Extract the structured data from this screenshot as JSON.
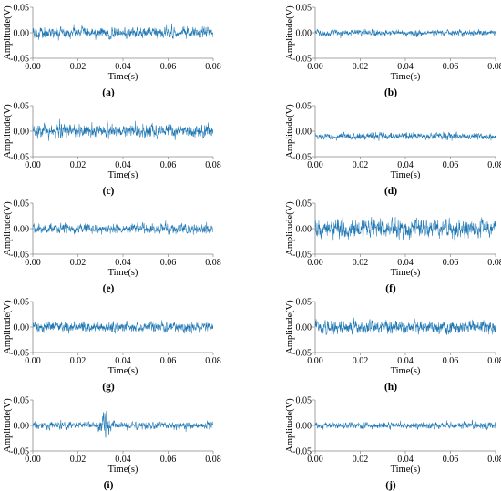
{
  "figure": {
    "axis_color": "#888888",
    "signal_color": "#1f77b4"
  },
  "chart_data": [
    {
      "type": "line",
      "panel": "a",
      "caption": "(a)",
      "xlabel": "Time(s)",
      "ylabel": "Amplitude(V)",
      "xlim": [
        0,
        0.08
      ],
      "ylim": [
        -0.05,
        0.05
      ],
      "xticks": [
        "0.00",
        "0.02",
        "0.04",
        "0.06",
        "0.08"
      ],
      "yticks": [
        "0.05",
        "0.00",
        "-0.05"
      ],
      "series": [
        {
          "color": "#1f77b4",
          "noise_amplitude": 0.018,
          "offset": 0.0,
          "points": 900,
          "sample_interval": 8.89e-05
        }
      ]
    },
    {
      "type": "line",
      "panel": "b",
      "caption": "(b)",
      "xlabel": "Time(s)",
      "ylabel": "Amplitude(V)",
      "xlim": [
        0,
        0.08
      ],
      "ylim": [
        -0.05,
        0.05
      ],
      "xticks": [
        "0.00",
        "0.02",
        "0.04",
        "0.06",
        "0.08"
      ],
      "yticks": [
        "0.05",
        "0.00",
        "-0.05"
      ],
      "series": [
        {
          "color": "#1f77b4",
          "noise_amplitude": 0.01,
          "offset": 0.0,
          "points": 900,
          "sample_interval": 8.89e-05
        }
      ]
    },
    {
      "type": "line",
      "panel": "c",
      "caption": "(c)",
      "xlabel": "Time(s)",
      "ylabel": "Amplitude(V)",
      "xlim": [
        0,
        0.08
      ],
      "ylim": [
        -0.05,
        0.05
      ],
      "xticks": [
        "0.00",
        "0.02",
        "0.04",
        "0.06",
        "0.08"
      ],
      "yticks": [
        "0.05",
        "0.00",
        "-0.05"
      ],
      "series": [
        {
          "color": "#1f77b4",
          "noise_amplitude": 0.022,
          "offset": 0.0,
          "points": 900,
          "sample_interval": 8.89e-05
        }
      ]
    },
    {
      "type": "line",
      "panel": "d",
      "caption": "(d)",
      "xlabel": "Time(s)",
      "ylabel": "Amplitude(V)",
      "xlim": [
        0,
        0.08
      ],
      "ylim": [
        -0.05,
        0.05
      ],
      "xticks": [
        "0.00",
        "0.02",
        "0.04",
        "0.06",
        "0.08"
      ],
      "yticks": [
        "0.05",
        "0.00",
        "-0.05"
      ],
      "series": [
        {
          "color": "#1f77b4",
          "noise_amplitude": 0.011,
          "offset": -0.01,
          "points": 900,
          "sample_interval": 8.89e-05
        }
      ]
    },
    {
      "type": "line",
      "panel": "e",
      "caption": "(e)",
      "xlabel": "Time(s)",
      "ylabel": "Amplitude(V)",
      "xlim": [
        0,
        0.08
      ],
      "ylim": [
        -0.05,
        0.05
      ],
      "xticks": [
        "0.00",
        "0.02",
        "0.04",
        "0.06",
        "0.08"
      ],
      "yticks": [
        "0.05",
        "0.00",
        "-0.05"
      ],
      "series": [
        {
          "color": "#1f77b4",
          "noise_amplitude": 0.016,
          "offset": 0.0,
          "points": 900,
          "sample_interval": 8.89e-05
        }
      ]
    },
    {
      "type": "line",
      "panel": "f",
      "caption": "(f)",
      "xlabel": "Time(s)",
      "ylabel": "Amplitude(V)",
      "xlim": [
        0,
        0.08
      ],
      "ylim": [
        -0.05,
        0.05
      ],
      "xticks": [
        "0.00",
        "0.02",
        "0.04",
        "0.06",
        "0.08"
      ],
      "yticks": [
        "0.05",
        "0.00",
        "-0.05"
      ],
      "series": [
        {
          "color": "#1f77b4",
          "noise_amplitude": 0.03,
          "offset": 0.0,
          "points": 900,
          "sample_interval": 8.89e-05
        }
      ]
    },
    {
      "type": "line",
      "panel": "g",
      "caption": "(g)",
      "xlabel": "Time(s)",
      "ylabel": "Amplitude(V)",
      "xlim": [
        0,
        0.08
      ],
      "ylim": [
        -0.05,
        0.05
      ],
      "xticks": [
        "0.00",
        "0.02",
        "0.04",
        "0.06",
        "0.08"
      ],
      "yticks": [
        "0.05",
        "0.00",
        "-0.05"
      ],
      "series": [
        {
          "color": "#1f77b4",
          "noise_amplitude": 0.016,
          "offset": 0.0,
          "points": 900,
          "sample_interval": 8.89e-05
        }
      ]
    },
    {
      "type": "line",
      "panel": "h",
      "caption": "(h)",
      "xlabel": "Time(s)",
      "ylabel": "Amplitude(V)",
      "xlim": [
        0,
        0.08
      ],
      "ylim": [
        -0.05,
        0.05
      ],
      "xticks": [
        "0.00",
        "0.02",
        "0.04",
        "0.06",
        "0.08"
      ],
      "yticks": [
        "0.05",
        "0.00",
        "-0.05"
      ],
      "series": [
        {
          "color": "#1f77b4",
          "noise_amplitude": 0.02,
          "offset": 0.0,
          "points": 900,
          "sample_interval": 8.89e-05
        }
      ]
    },
    {
      "type": "line",
      "panel": "i",
      "caption": "(i)",
      "xlabel": "Time(s)",
      "ylabel": "Amplitude(V)",
      "xlim": [
        0,
        0.08
      ],
      "ylim": [
        -0.05,
        0.05
      ],
      "xticks": [
        "0.00",
        "0.02",
        "0.04",
        "0.06",
        "0.08"
      ],
      "yticks": [
        "0.05",
        "0.00",
        "-0.05"
      ],
      "series": [
        {
          "color": "#1f77b4",
          "noise_amplitude": 0.012,
          "offset": 0.0,
          "points": 900,
          "sample_interval": 8.89e-05,
          "burst_center": 0.032,
          "burst_amplitude": 0.03
        }
      ]
    },
    {
      "type": "line",
      "panel": "j",
      "caption": "(j)",
      "xlabel": "Time(s)",
      "ylabel": "Amplitude(V)",
      "xlim": [
        0,
        0.08
      ],
      "ylim": [
        -0.05,
        0.05
      ],
      "xticks": [
        "0.00",
        "0.02",
        "0.04",
        "0.06",
        "0.08"
      ],
      "yticks": [
        "0.05",
        "0.00",
        "-0.05"
      ],
      "series": [
        {
          "color": "#1f77b4",
          "noise_amplitude": 0.011,
          "offset": 0.0,
          "points": 900,
          "sample_interval": 8.89e-05
        }
      ]
    }
  ]
}
